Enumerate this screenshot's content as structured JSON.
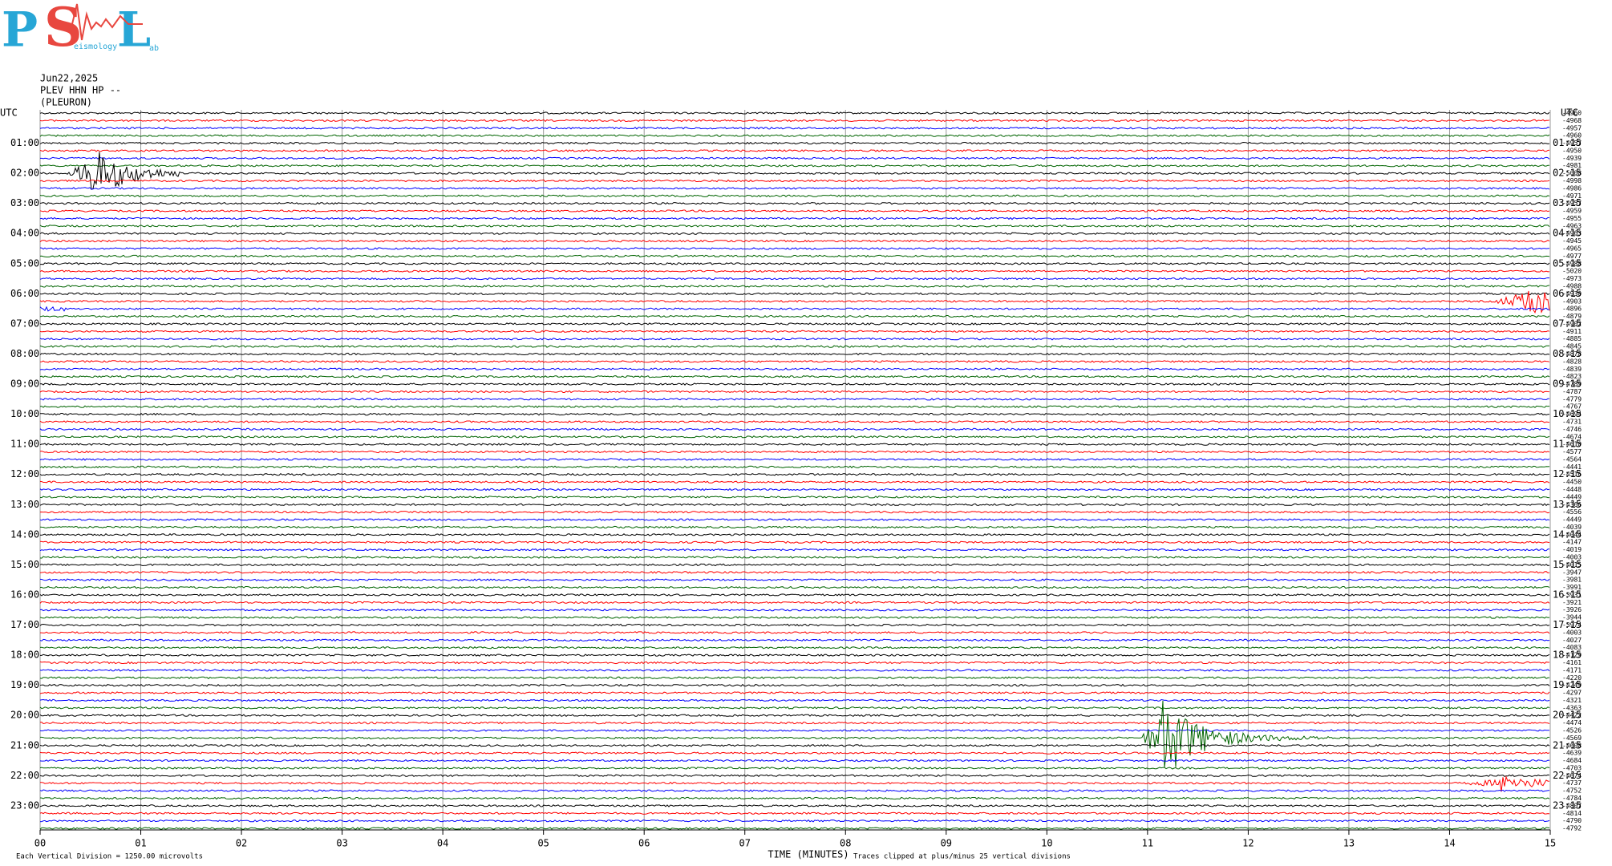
{
  "logo": {
    "letters": [
      "P",
      "S",
      "L"
    ],
    "small": [
      "eismology",
      "ab"
    ]
  },
  "header": {
    "date": "Jun22,2025",
    "station": "PLEV HHN HP --",
    "location": "(PLEURON)"
  },
  "left_labels": [
    "UTC",
    "01:00",
    "02:00",
    "03:00",
    "04:00",
    "05:00",
    "06:00",
    "07:00",
    "08:00",
    "09:00",
    "10:00",
    "11:00",
    "12:00",
    "13:00",
    "14:00",
    "15:00",
    "16:00",
    "17:00",
    "18:00",
    "19:00",
    "20:00",
    "21:00",
    "22:00",
    "23:00"
  ],
  "right_labels": [
    "UTC",
    "01:15",
    "02:15",
    "03:15",
    "04:15",
    "05:15",
    "06:15",
    "07:15",
    "08:15",
    "09:15",
    "10:15",
    "11:15",
    "12:15",
    "13:15",
    "14:15",
    "15:15",
    "16:15",
    "17:15",
    "18:15",
    "19:15",
    "20:15",
    "21:15",
    "22:15",
    "23:15"
  ],
  "offsets": [
    -4960,
    -4968,
    -4957,
    -4960,
    -4957,
    -4950,
    -4939,
    -4981,
    -5008,
    -4998,
    -4986,
    -4971,
    -4957,
    -4959,
    -4955,
    -4963,
    -4963,
    -4945,
    -4965,
    -4977,
    -4988,
    -5020,
    -4973,
    -4988,
    -4930,
    -4903,
    -4896,
    -4879,
    -4902,
    -4911,
    -4885,
    -4845,
    -4878,
    -4828,
    -4839,
    -4823,
    -4789,
    -4787,
    -4779,
    -4767,
    -4694,
    -4731,
    -4746,
    -4674,
    -4610,
    -4577,
    -4564,
    -4441,
    -4516,
    -4450,
    -4448,
    -4449,
    -4366,
    -4556,
    -4449,
    -4039,
    -4044,
    -4147,
    -4019,
    -4003,
    -4015,
    -3947,
    -3981,
    -3991,
    -3931,
    -3921,
    -3926,
    -3944,
    -3974,
    -4003,
    -4027,
    -4083,
    -4129,
    -4161,
    -4171,
    -4220,
    -4249,
    -4297,
    -4321,
    -4363,
    -4422,
    -4474,
    -4526,
    -4569,
    -4608,
    -4639,
    -4684,
    -4703,
    -4674,
    -4737,
    -4752,
    -4784,
    -4807,
    -4814,
    -4790,
    -4792
  ],
  "x_labels": [
    "00",
    "01",
    "02",
    "03",
    "04",
    "05",
    "06",
    "07",
    "08",
    "09",
    "10",
    "11",
    "12",
    "13",
    "14",
    "15"
  ],
  "x_title": "TIME (MINUTES)",
  "notes": {
    "scale": "Each Vertical Division = 1250.00 microvolts",
    "clip": "Traces clipped at plus/minus 25 vertical divisions"
  }
}
